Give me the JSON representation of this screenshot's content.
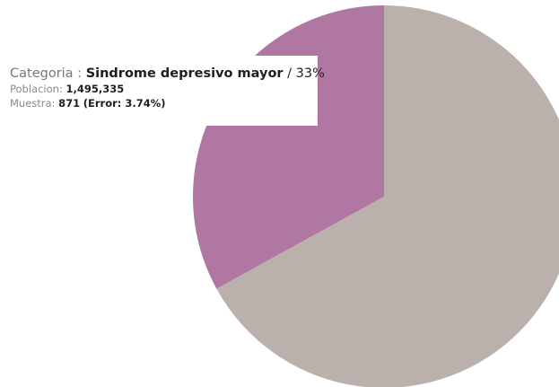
{
  "chart_data": {
    "type": "pie",
    "categories": [
      "Sindrome depresivo mayor",
      ""
    ],
    "values": [
      33,
      67
    ],
    "unit": "%",
    "colors": [
      "#b077a2",
      "#bab0ac"
    ],
    "start": "12 o'clock",
    "direction": "counter-clockwise for first slice",
    "legend": "none",
    "title": ""
  },
  "tooltip": {
    "category_label": "Categoria",
    "category_sep": " : ",
    "category_value": "Sindrome depresivo mayor",
    "percent": "/ 33%",
    "population_label": "Poblacion:",
    "population_value": "1,495,335",
    "sample_label": "Muestra:",
    "sample_value": "871",
    "error_text": "(Error: 3.74%)"
  }
}
